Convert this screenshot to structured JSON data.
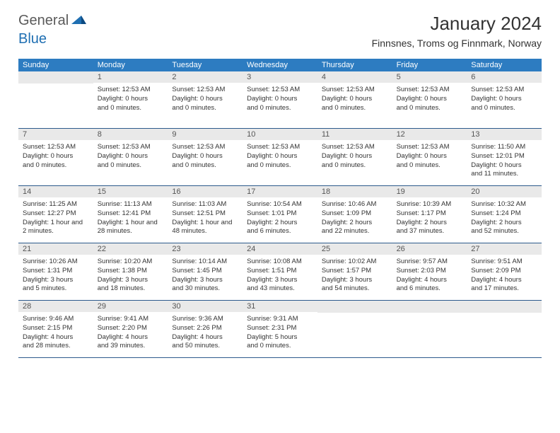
{
  "brand": {
    "general": "General",
    "blue": "Blue"
  },
  "title": "January 2024",
  "location": "Finnsnes, Troms og Finnmark, Norway",
  "colors": {
    "header_bg": "#2d7cc1",
    "header_text": "#ffffff",
    "daynum_bg": "#e9e9e9",
    "rule": "#2d5a8c",
    "logo_gray": "#5a5a5a",
    "logo_blue": "#1f6fb2"
  },
  "day_names": [
    "Sunday",
    "Monday",
    "Tuesday",
    "Wednesday",
    "Thursday",
    "Friday",
    "Saturday"
  ],
  "weeks": [
    [
      {
        "num": "",
        "lines": []
      },
      {
        "num": "1",
        "lines": [
          "Sunset: 12:53 AM",
          "Daylight: 0 hours",
          "and 0 minutes."
        ]
      },
      {
        "num": "2",
        "lines": [
          "Sunset: 12:53 AM",
          "Daylight: 0 hours",
          "and 0 minutes."
        ]
      },
      {
        "num": "3",
        "lines": [
          "Sunset: 12:53 AM",
          "Daylight: 0 hours",
          "and 0 minutes."
        ]
      },
      {
        "num": "4",
        "lines": [
          "Sunset: 12:53 AM",
          "Daylight: 0 hours",
          "and 0 minutes."
        ]
      },
      {
        "num": "5",
        "lines": [
          "Sunset: 12:53 AM",
          "Daylight: 0 hours",
          "and 0 minutes."
        ]
      },
      {
        "num": "6",
        "lines": [
          "Sunset: 12:53 AM",
          "Daylight: 0 hours",
          "and 0 minutes."
        ]
      }
    ],
    [
      {
        "num": "7",
        "lines": [
          "Sunset: 12:53 AM",
          "Daylight: 0 hours",
          "and 0 minutes."
        ]
      },
      {
        "num": "8",
        "lines": [
          "Sunset: 12:53 AM",
          "Daylight: 0 hours",
          "and 0 minutes."
        ]
      },
      {
        "num": "9",
        "lines": [
          "Sunset: 12:53 AM",
          "Daylight: 0 hours",
          "and 0 minutes."
        ]
      },
      {
        "num": "10",
        "lines": [
          "Sunset: 12:53 AM",
          "Daylight: 0 hours",
          "and 0 minutes."
        ]
      },
      {
        "num": "11",
        "lines": [
          "Sunset: 12:53 AM",
          "Daylight: 0 hours",
          "and 0 minutes."
        ]
      },
      {
        "num": "12",
        "lines": [
          "Sunset: 12:53 AM",
          "Daylight: 0 hours",
          "and 0 minutes."
        ]
      },
      {
        "num": "13",
        "lines": [
          "Sunrise: 11:50 AM",
          "Sunset: 12:01 PM",
          "Daylight: 0 hours",
          "and 11 minutes."
        ]
      }
    ],
    [
      {
        "num": "14",
        "lines": [
          "Sunrise: 11:25 AM",
          "Sunset: 12:27 PM",
          "Daylight: 1 hour and",
          "2 minutes."
        ]
      },
      {
        "num": "15",
        "lines": [
          "Sunrise: 11:13 AM",
          "Sunset: 12:41 PM",
          "Daylight: 1 hour and",
          "28 minutes."
        ]
      },
      {
        "num": "16",
        "lines": [
          "Sunrise: 11:03 AM",
          "Sunset: 12:51 PM",
          "Daylight: 1 hour and",
          "48 minutes."
        ]
      },
      {
        "num": "17",
        "lines": [
          "Sunrise: 10:54 AM",
          "Sunset: 1:01 PM",
          "Daylight: 2 hours",
          "and 6 minutes."
        ]
      },
      {
        "num": "18",
        "lines": [
          "Sunrise: 10:46 AM",
          "Sunset: 1:09 PM",
          "Daylight: 2 hours",
          "and 22 minutes."
        ]
      },
      {
        "num": "19",
        "lines": [
          "Sunrise: 10:39 AM",
          "Sunset: 1:17 PM",
          "Daylight: 2 hours",
          "and 37 minutes."
        ]
      },
      {
        "num": "20",
        "lines": [
          "Sunrise: 10:32 AM",
          "Sunset: 1:24 PM",
          "Daylight: 2 hours",
          "and 52 minutes."
        ]
      }
    ],
    [
      {
        "num": "21",
        "lines": [
          "Sunrise: 10:26 AM",
          "Sunset: 1:31 PM",
          "Daylight: 3 hours",
          "and 5 minutes."
        ]
      },
      {
        "num": "22",
        "lines": [
          "Sunrise: 10:20 AM",
          "Sunset: 1:38 PM",
          "Daylight: 3 hours",
          "and 18 minutes."
        ]
      },
      {
        "num": "23",
        "lines": [
          "Sunrise: 10:14 AM",
          "Sunset: 1:45 PM",
          "Daylight: 3 hours",
          "and 30 minutes."
        ]
      },
      {
        "num": "24",
        "lines": [
          "Sunrise: 10:08 AM",
          "Sunset: 1:51 PM",
          "Daylight: 3 hours",
          "and 43 minutes."
        ]
      },
      {
        "num": "25",
        "lines": [
          "Sunrise: 10:02 AM",
          "Sunset: 1:57 PM",
          "Daylight: 3 hours",
          "and 54 minutes."
        ]
      },
      {
        "num": "26",
        "lines": [
          "Sunrise: 9:57 AM",
          "Sunset: 2:03 PM",
          "Daylight: 4 hours",
          "and 6 minutes."
        ]
      },
      {
        "num": "27",
        "lines": [
          "Sunrise: 9:51 AM",
          "Sunset: 2:09 PM",
          "Daylight: 4 hours",
          "and 17 minutes."
        ]
      }
    ],
    [
      {
        "num": "28",
        "lines": [
          "Sunrise: 9:46 AM",
          "Sunset: 2:15 PM",
          "Daylight: 4 hours",
          "and 28 minutes."
        ]
      },
      {
        "num": "29",
        "lines": [
          "Sunrise: 9:41 AM",
          "Sunset: 2:20 PM",
          "Daylight: 4 hours",
          "and 39 minutes."
        ]
      },
      {
        "num": "30",
        "lines": [
          "Sunrise: 9:36 AM",
          "Sunset: 2:26 PM",
          "Daylight: 4 hours",
          "and 50 minutes."
        ]
      },
      {
        "num": "31",
        "lines": [
          "Sunrise: 9:31 AM",
          "Sunset: 2:31 PM",
          "Daylight: 5 hours",
          "and 0 minutes."
        ]
      },
      {
        "num": "",
        "lines": []
      },
      {
        "num": "",
        "lines": []
      },
      {
        "num": "",
        "lines": []
      }
    ]
  ]
}
